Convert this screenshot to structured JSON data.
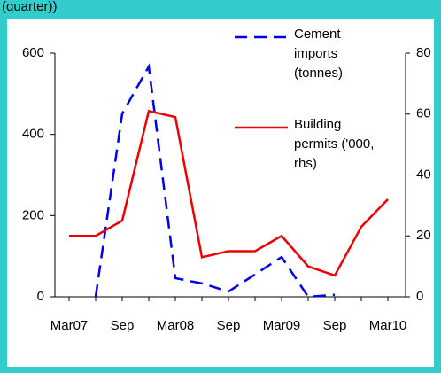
{
  "chart_data": {
    "type": "line",
    "title": "(quarter))",
    "categories": [
      "Mar07",
      null,
      "Sep",
      null,
      "Mar08",
      null,
      "Sep",
      null,
      "Mar09",
      null,
      "Sep",
      null,
      "Mar10"
    ],
    "series": [
      {
        "name": "Cement imports (tonnes)",
        "color": "#0000ee",
        "dash": true,
        "axis": "y",
        "values": [
          null,
          0,
          451,
          567,
          46,
          33,
          13,
          55,
          98,
          0,
          5,
          null,
          null
        ]
      },
      {
        "name": "Building permits ('000, rhs)",
        "color": "#ee0000",
        "dash": false,
        "axis": "y2",
        "values": [
          20,
          20,
          25,
          61,
          59,
          13,
          15,
          15,
          20,
          10,
          7,
          23,
          32
        ]
      }
    ],
    "ylim": [
      0,
      600
    ],
    "yticks": [
      0,
      200,
      400,
      600
    ],
    "y2lim": [
      0,
      80
    ],
    "y2ticks": [
      0,
      20,
      40,
      60,
      80
    ]
  }
}
